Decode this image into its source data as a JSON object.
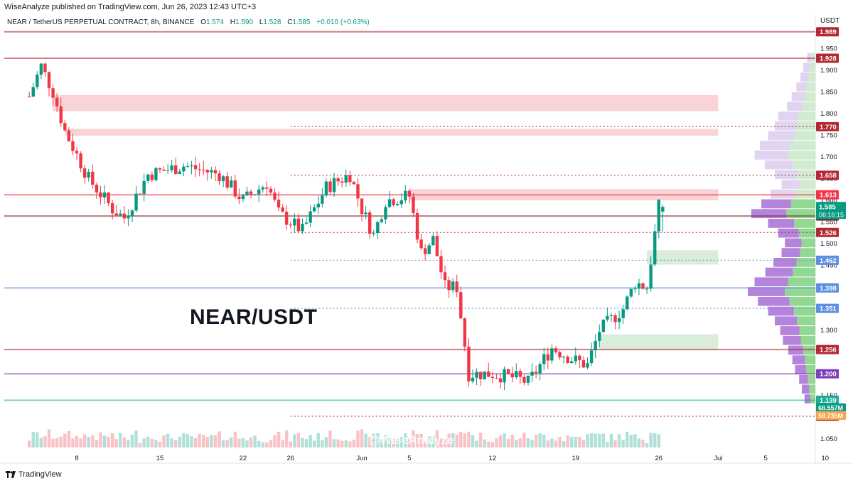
{
  "header": {
    "published": "WiseAnalyze published on TradingView.com, Jun 26, 2023 12:43 UTC+3",
    "symbol": "NEAR / TetherUS PERPETUAL CONTRACT, 8h, BINANCE",
    "ohlc": [
      {
        "label": "O",
        "value": "1.574"
      },
      {
        "label": "H",
        "value": "1.590"
      },
      {
        "label": "L",
        "value": "1.528"
      },
      {
        "label": "C",
        "value": "1.585"
      }
    ],
    "change": "+0.010 (+0.63%)"
  },
  "overlay_text": {
    "pair_title": "NEAR/USDT",
    "watermark": "@WiseAnalyze"
  },
  "footer": {
    "brand": "TradingView"
  },
  "colors": {
    "up": "#089981",
    "down": "#f23645",
    "supply_zone": "#f8c4c8",
    "demand_zone": "#cfe9cf",
    "level_red": "#b22833",
    "level_blue": "#5c8fdf",
    "level_purple": "#7e3fb8",
    "level_green": "#22ab94"
  },
  "chart_data": {
    "type": "candlestick",
    "title": "",
    "y_axis_label": "USDT",
    "ylim": [
      1.03,
      2.0
    ],
    "y_ticks": [
      "1.950",
      "1.900",
      "1.850",
      "1.800",
      "1.750",
      "1.700",
      "1.650",
      "1.600",
      "1.550",
      "1.500",
      "1.450",
      "1.400",
      "1.350",
      "1.300",
      "1.250",
      "1.200",
      "1.150",
      "1.100",
      "1.050"
    ],
    "x_ticks": [
      "8",
      "15",
      "22",
      "26",
      "Jun",
      "5",
      "12",
      "19",
      "26",
      "Jul",
      "5",
      "10"
    ],
    "x_dates": [
      "2023-05-08",
      "2023-05-15",
      "2023-05-22",
      "2023-05-26",
      "2023-06-01",
      "2023-06-05",
      "2023-06-12",
      "2023-06-19",
      "2023-06-26",
      "2023-07-01",
      "2023-07-05",
      "2023-07-10"
    ],
    "candle_interval": "8h",
    "close_path": [
      {
        "date": "2023-05-04",
        "close": 1.84
      },
      {
        "date": "2023-05-05",
        "close": 1.91
      },
      {
        "date": "2023-05-06",
        "close": 1.85
      },
      {
        "date": "2023-05-07",
        "close": 1.76
      },
      {
        "date": "2023-05-09",
        "close": 1.65
      },
      {
        "date": "2023-05-11",
        "close": 1.58
      },
      {
        "date": "2023-05-12",
        "close": 1.56
      },
      {
        "date": "2023-05-14",
        "close": 1.66
      },
      {
        "date": "2023-05-17",
        "close": 1.68
      },
      {
        "date": "2023-05-20",
        "close": 1.66
      },
      {
        "date": "2023-05-22",
        "close": 1.6
      },
      {
        "date": "2023-05-24",
        "close": 1.64
      },
      {
        "date": "2023-05-25",
        "close": 1.57
      },
      {
        "date": "2023-05-27",
        "close": 1.53
      },
      {
        "date": "2023-05-29",
        "close": 1.63
      },
      {
        "date": "2023-05-31",
        "close": 1.66
      },
      {
        "date": "2023-06-01",
        "close": 1.58
      },
      {
        "date": "2023-06-02",
        "close": 1.52
      },
      {
        "date": "2023-06-03",
        "close": 1.6
      },
      {
        "date": "2023-06-05",
        "close": 1.61
      },
      {
        "date": "2023-06-06",
        "close": 1.48
      },
      {
        "date": "2023-06-07",
        "close": 1.51
      },
      {
        "date": "2023-06-08",
        "close": 1.4
      },
      {
        "date": "2023-06-09",
        "close": 1.4
      },
      {
        "date": "2023-06-10",
        "close": 1.2
      },
      {
        "date": "2023-06-12",
        "close": 1.2
      },
      {
        "date": "2023-06-14",
        "close": 1.19
      },
      {
        "date": "2023-06-15",
        "close": 1.18
      },
      {
        "date": "2023-06-17",
        "close": 1.26
      },
      {
        "date": "2023-06-19",
        "close": 1.23
      },
      {
        "date": "2023-06-20",
        "close": 1.22
      },
      {
        "date": "2023-06-21",
        "close": 1.3
      },
      {
        "date": "2023-06-23",
        "close": 1.35
      },
      {
        "date": "2023-06-24",
        "close": 1.41
      },
      {
        "date": "2023-06-25",
        "close": 1.4
      },
      {
        "date": "2023-06-26",
        "close": 1.585
      }
    ],
    "last_price": {
      "price": 1.585,
      "value": "1.585",
      "countdown": "06:16:15"
    },
    "levels": [
      {
        "price": 1.989,
        "label": "1.989",
        "color": "#b22833",
        "style": "solid"
      },
      {
        "price": 1.928,
        "label": "1.928",
        "color": "#b22833",
        "style": "solid"
      },
      {
        "price": 1.77,
        "label": "1.770",
        "color": "#b22833",
        "style": "dotted"
      },
      {
        "price": 1.658,
        "label": "1.658",
        "color": "#b22833",
        "style": "dotted"
      },
      {
        "price": 1.613,
        "label": "1.613",
        "color": "#f23645",
        "style": "solid"
      },
      {
        "price": 1.564,
        "label": "1.564",
        "color": "#7a2b31",
        "style": "solid"
      },
      {
        "price": 1.526,
        "label": "1.526",
        "color": "#b22833",
        "style": "dotted"
      },
      {
        "price": 1.462,
        "label": "1.462",
        "color": "#5c8fdf",
        "style": "dotted"
      },
      {
        "price": 1.398,
        "label": "1.398",
        "color": "#5c8fdf",
        "style": "solid"
      },
      {
        "price": 1.351,
        "label": "1.351",
        "color": "#5c8fdf",
        "style": "dotted"
      },
      {
        "price": 1.256,
        "label": "1.256",
        "color": "#b22833",
        "style": "solid"
      },
      {
        "price": 1.2,
        "label": "1.200",
        "color": "#7e3fb8",
        "style": "solid"
      },
      {
        "price": 1.139,
        "label": "1.139",
        "color": "#22ab94",
        "style": "solid"
      },
      {
        "price": 1.102,
        "label": "1.102",
        "color": "#b22833",
        "style": "dotted"
      }
    ],
    "zones": [
      {
        "from_date": "2023-05-06",
        "to_date": "2023-07-01",
        "low": 1.806,
        "high": 1.843,
        "kind": "supply"
      },
      {
        "from_date": "2023-05-07",
        "to_date": "2023-07-01",
        "low": 1.749,
        "high": 1.765,
        "kind": "supply"
      },
      {
        "from_date": "2023-06-05",
        "to_date": "2023-07-01",
        "low": 1.6,
        "high": 1.626,
        "kind": "supply"
      },
      {
        "from_date": "2023-06-25",
        "to_date": "2023-07-01",
        "low": 1.452,
        "high": 1.485,
        "kind": "demand"
      },
      {
        "from_date": "2023-06-21",
        "to_date": "2023-07-01",
        "low": 1.256,
        "high": 1.291,
        "kind": "demand"
      }
    ],
    "volume_labels": [
      {
        "value": "68.557M",
        "color": "#089981"
      },
      {
        "value": "58.735M",
        "color": "#f7a44a"
      }
    ]
  }
}
